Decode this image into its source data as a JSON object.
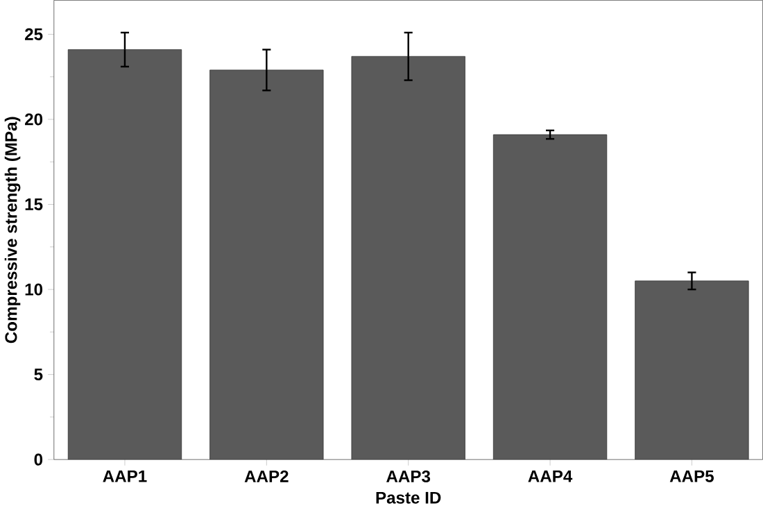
{
  "chart_data": {
    "type": "bar",
    "xlabel": "Paste ID",
    "ylabel": "Compressive strength (MPa)",
    "categories": [
      "AAP1",
      "AAP2",
      "AAP3",
      "AAP4",
      "AAP5"
    ],
    "values": [
      24.1,
      22.9,
      23.7,
      19.1,
      10.5
    ],
    "errors": [
      1.0,
      1.2,
      1.4,
      0.25,
      0.5
    ],
    "color": "#5a5a5a",
    "ylim": [
      0,
      27
    ],
    "yticks": [
      0,
      5,
      10,
      15,
      20,
      25
    ],
    "grid": false
  }
}
